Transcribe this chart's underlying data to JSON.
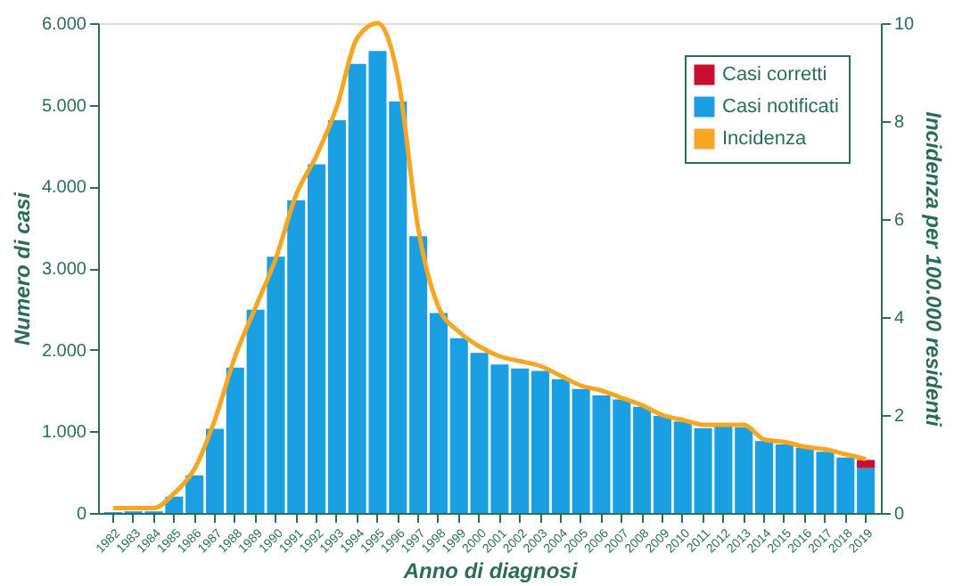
{
  "chart_data": {
    "type": "bar",
    "stacked": true,
    "xlabel": "Anno di diagnosi",
    "ylabel": "Numero di casi",
    "y2label": "Incidenza per 100.000 residenti",
    "categories": [
      "1982",
      "1983",
      "1984",
      "1985",
      "1986",
      "1987",
      "1988",
      "1989",
      "1990",
      "1991",
      "1992",
      "1993",
      "1994",
      "1995",
      "1996",
      "1997",
      "1998",
      "1999",
      "2000",
      "2001",
      "2002",
      "2003",
      "2004",
      "2005",
      "2006",
      "2007",
      "2008",
      "2009",
      "2010",
      "2011",
      "2012",
      "2013",
      "2014",
      "2015",
      "2016",
      "2017",
      "2018",
      "2019"
    ],
    "series": [
      {
        "name": "Casi notificati",
        "color": "#1a9fe3",
        "values": [
          10,
          20,
          20,
          200,
          460,
          1030,
          1780,
          2490,
          3140,
          3830,
          4270,
          4810,
          5500,
          5660,
          5040,
          3390,
          2450,
          2140,
          1960,
          1820,
          1770,
          1740,
          1640,
          1520,
          1440,
          1390,
          1300,
          1190,
          1120,
          1040,
          1060,
          1050,
          880,
          840,
          800,
          750,
          680,
          550
        ]
      },
      {
        "name": "Casi corretti",
        "color": "#c8102e",
        "values": [
          null,
          null,
          null,
          null,
          null,
          null,
          null,
          null,
          null,
          null,
          null,
          null,
          null,
          null,
          null,
          null,
          null,
          null,
          null,
          null,
          null,
          null,
          null,
          null,
          null,
          null,
          null,
          null,
          null,
          null,
          null,
          null,
          null,
          null,
          null,
          null,
          null,
          100
        ]
      },
      {
        "name": "Incidenza",
        "type": "line",
        "axis": "y2",
        "color": "#f5a623",
        "values": [
          0.1,
          0.1,
          0.1,
          0.4,
          0.9,
          1.9,
          3.2,
          4.2,
          5.2,
          6.5,
          7.3,
          8.3,
          9.7,
          10.0,
          8.9,
          5.8,
          4.2,
          3.7,
          3.4,
          3.2,
          3.1,
          3.0,
          2.8,
          2.6,
          2.5,
          2.35,
          2.2,
          2.0,
          1.9,
          1.8,
          1.8,
          1.8,
          1.5,
          1.45,
          1.35,
          1.3,
          1.2,
          1.1
        ]
      }
    ],
    "ylim": [
      0,
      6000
    ],
    "yticks": [
      0,
      {
        "value": 1000,
        "label": "1.000"
      },
      {
        "value": 2000,
        "label": "2.000"
      },
      {
        "value": 3000,
        "label": "3.000"
      },
      {
        "value": 4000,
        "label": "4.000"
      },
      {
        "value": 5000,
        "label": "5.000"
      },
      {
        "value": 6000,
        "label": "6.000"
      }
    ],
    "y2lim": [
      0,
      10
    ],
    "y2ticks": [
      0,
      2,
      4,
      6,
      8,
      10
    ],
    "legend": "top right",
    "grid": false
  }
}
